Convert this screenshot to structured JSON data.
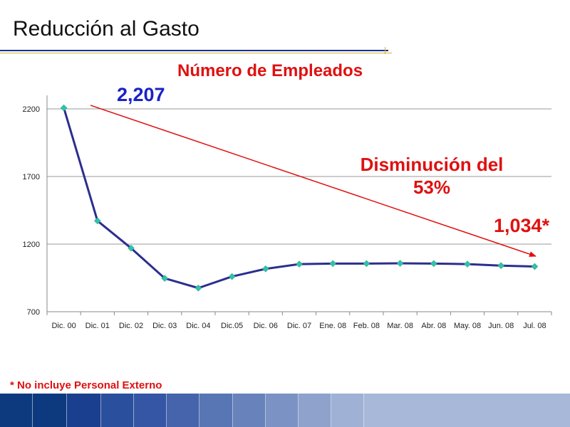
{
  "header": {
    "title": "Reducción al Gasto"
  },
  "chart_data": {
    "type": "line",
    "title": "Número de Empleados",
    "categories": [
      "Dic. 00",
      "Dic. 01",
      "Dic. 02",
      "Dic. 03",
      "Dic. 04",
      "Dic.05",
      "Dic. 06",
      "Dic. 07",
      "Ene. 08",
      "Feb. 08",
      "Mar. 08",
      "Abr. 08",
      "May. 08",
      "Jun. 08",
      "Jul. 08"
    ],
    "series": [
      {
        "values": [
          2207,
          1372,
          1170,
          947,
          875,
          960,
          1017,
          1052,
          1056,
          1056,
          1058,
          1056,
          1052,
          1041,
          1034
        ]
      }
    ],
    "y_ticks": [
      700,
      1200,
      1700,
      2200
    ],
    "ylim": [
      700,
      2300
    ],
    "grid": true,
    "line_color": "#2b2e8e",
    "marker_color": "#2ec4a8",
    "annotations": {
      "start_value": "2,207",
      "decrease_text": [
        "Disminución del",
        "53%"
      ],
      "end_value": "1,034*"
    }
  },
  "footnote": "* No incluye Personal Externo",
  "colors": {
    "accent_red": "#e01010",
    "accent_blue": "#1a22c8",
    "bottom_bar": [
      "#0d3a7f",
      "#0d3a7f",
      "#1a3f8e",
      "#2a4f9c",
      "#3556a4",
      "#4564ab",
      "#5876b4",
      "#6883bc",
      "#7b93c4",
      "#8ea2cc",
      "#9fb1d4"
    ]
  }
}
